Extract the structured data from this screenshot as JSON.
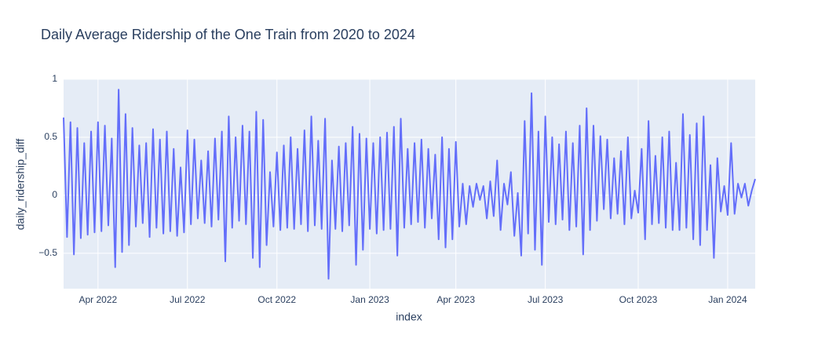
{
  "chart_data": {
    "type": "line",
    "title": "Daily Average Ridership of the One Train from 2020 to 2024",
    "x_label": "index",
    "y_label": "daily_ridership_diff",
    "color": "#636efa",
    "grid": true,
    "ylim": [
      -0.805,
      1
    ],
    "yticks": [
      {
        "value": -0.5,
        "label": "−0.5"
      },
      0,
      0.5,
      1
    ],
    "categories": [
      null,
      null,
      null,
      null,
      null,
      null,
      null,
      null,
      null,
      null,
      "Apr 2022",
      null,
      null,
      null,
      null,
      null,
      null,
      null,
      null,
      null,
      null,
      null,
      null,
      null,
      null,
      null,
      null,
      null,
      null,
      null,
      null,
      null,
      null,
      null,
      null,
      null,
      "Jul 2022",
      null,
      null,
      null,
      null,
      null,
      null,
      null,
      null,
      null,
      null,
      null,
      null,
      null,
      null,
      null,
      null,
      null,
      null,
      null,
      null,
      null,
      null,
      null,
      null,
      null,
      "Oct 2022",
      null,
      null,
      null,
      null,
      null,
      null,
      null,
      null,
      null,
      null,
      null,
      null,
      null,
      null,
      null,
      null,
      null,
      null,
      null,
      null,
      null,
      null,
      null,
      null,
      null,
      null,
      "Jan 2023",
      null,
      null,
      null,
      null,
      null,
      null,
      null,
      null,
      null,
      null,
      null,
      null,
      null,
      null,
      null,
      null,
      null,
      null,
      null,
      null,
      null,
      null,
      null,
      null,
      "Apr 2023",
      null,
      null,
      null,
      null,
      null,
      null,
      null,
      null,
      null,
      null,
      null,
      null,
      null,
      null,
      null,
      null,
      null,
      null,
      null,
      null,
      null,
      null,
      null,
      null,
      null,
      "Jul 2023",
      null,
      null,
      null,
      null,
      null,
      null,
      null,
      null,
      null,
      null,
      null,
      null,
      null,
      null,
      null,
      null,
      null,
      null,
      null,
      null,
      null,
      null,
      null,
      null,
      null,
      null,
      "Oct 2023",
      null,
      null,
      null,
      null,
      null,
      null,
      null,
      null,
      null,
      null,
      null,
      null,
      null,
      null,
      null,
      null,
      null,
      null,
      null,
      null,
      null,
      null,
      null,
      null,
      null,
      "Jan 2024",
      null,
      null,
      null,
      null,
      null,
      null,
      null,
      null
    ],
    "values": [
      0.67,
      -0.36,
      0.63,
      -0.51,
      0.58,
      -0.37,
      0.45,
      -0.34,
      0.55,
      -0.32,
      0.63,
      -0.31,
      0.6,
      -0.26,
      0.49,
      -0.62,
      0.91,
      -0.49,
      0.7,
      -0.43,
      0.58,
      -0.27,
      0.43,
      -0.24,
      0.45,
      -0.36,
      0.57,
      -0.28,
      0.48,
      -0.33,
      0.55,
      -0.31,
      0.4,
      -0.35,
      0.24,
      -0.32,
      0.56,
      -0.25,
      0.48,
      -0.2,
      0.3,
      -0.24,
      0.38,
      -0.27,
      0.49,
      -0.21,
      0.55,
      -0.57,
      0.68,
      -0.28,
      0.5,
      -0.22,
      0.6,
      -0.25,
      0.55,
      -0.54,
      0.72,
      -0.62,
      0.65,
      -0.43,
      0.2,
      -0.27,
      0.37,
      -0.3,
      0.43,
      -0.28,
      0.5,
      -0.29,
      0.4,
      -0.25,
      0.56,
      -0.31,
      0.68,
      -0.26,
      0.47,
      -0.29,
      0.66,
      -0.72,
      0.3,
      -0.29,
      0.42,
      -0.31,
      0.45,
      -0.26,
      0.59,
      -0.6,
      0.53,
      -0.47,
      0.49,
      -0.29,
      0.45,
      -0.33,
      0.5,
      -0.3,
      0.54,
      -0.29,
      0.59,
      -0.52,
      0.66,
      -0.28,
      0.4,
      -0.25,
      0.45,
      -0.23,
      0.48,
      -0.28,
      0.4,
      -0.2,
      0.35,
      -0.38,
      0.5,
      -0.45,
      0.4,
      -0.38,
      0.46,
      -0.27,
      0.1,
      -0.25,
      0.08,
      -0.1,
      0.1,
      -0.04,
      0.08,
      -0.2,
      0.12,
      -0.18,
      0.3,
      -0.3,
      0.1,
      -0.08,
      0.2,
      -0.35,
      0.02,
      -0.52,
      0.64,
      -0.33,
      0.88,
      -0.47,
      0.55,
      -0.6,
      0.68,
      -0.23,
      0.5,
      -0.25,
      0.44,
      -0.21,
      0.55,
      -0.3,
      0.45,
      -0.27,
      0.6,
      -0.51,
      0.75,
      -0.3,
      0.6,
      -0.22,
      0.51,
      -0.12,
      0.48,
      -0.2,
      0.32,
      -0.16,
      0.38,
      -0.25,
      0.5,
      -0.2,
      0.04,
      -0.15,
      0.4,
      -0.38,
      0.64,
      -0.25,
      0.34,
      -0.24,
      0.5,
      -0.28,
      0.55,
      -0.3,
      0.28,
      -0.3,
      0.7,
      -0.28,
      0.52,
      -0.38,
      0.62,
      -0.43,
      0.68,
      -0.3,
      0.26,
      -0.54,
      0.32,
      -0.14,
      0.08,
      -0.17,
      0.45,
      -0.16,
      0.1,
      -0.02,
      0.1,
      -0.09,
      0.04,
      0.14
    ]
  }
}
